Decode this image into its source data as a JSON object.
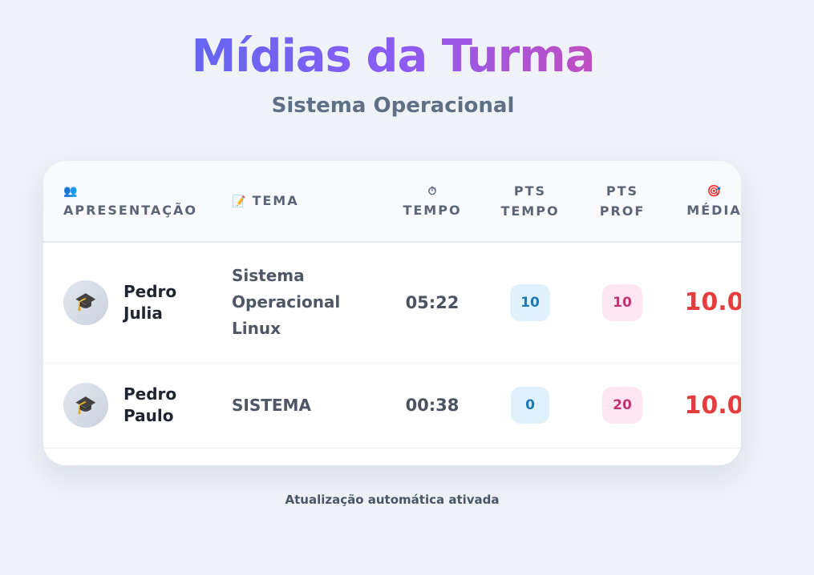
{
  "header": {
    "title": "Mídias da Turma",
    "subtitle": "Sistema Operacional"
  },
  "table": {
    "columns": [
      {
        "icon": "👥",
        "icon_name": "people-icon",
        "label": "Apresentação"
      },
      {
        "icon": "📝",
        "icon_name": "memo-icon",
        "label": "Tema"
      },
      {
        "icon": "⏱",
        "icon_name": "stopwatch-icon",
        "label": "Tempo"
      },
      {
        "line1": "Pts",
        "line2": "Tempo"
      },
      {
        "line1": "Pts",
        "line2": "Prof"
      },
      {
        "icon": "🎯",
        "icon_name": "target-icon",
        "label": "Média"
      }
    ],
    "rows": [
      {
        "avatar": "🎓",
        "avatar_icon": "graduation-cap-icon",
        "name": "Pedro Julia",
        "tema": "Sistema Operacional Linux",
        "tempo": "05:22",
        "pts_tempo": "10",
        "pts_prof": "10",
        "media": "10.0"
      },
      {
        "avatar": "🎓",
        "avatar_icon": "graduation-cap-icon",
        "name": "Pedro Paulo",
        "tema": "SISTEMA",
        "tempo": "00:38",
        "pts_tempo": "0",
        "pts_prof": "20",
        "media": "10.0"
      }
    ]
  },
  "footer": {
    "status": "Atualização automática ativada"
  },
  "colors": {
    "background": "#eff2f7",
    "title_gradient_start": "#6366f1",
    "title_gradient_end": "#c04fc0",
    "pts_tempo_badge": "#e0f1fc",
    "pts_prof_badge": "#fde6f1",
    "media_text": "#e43d3d"
  }
}
